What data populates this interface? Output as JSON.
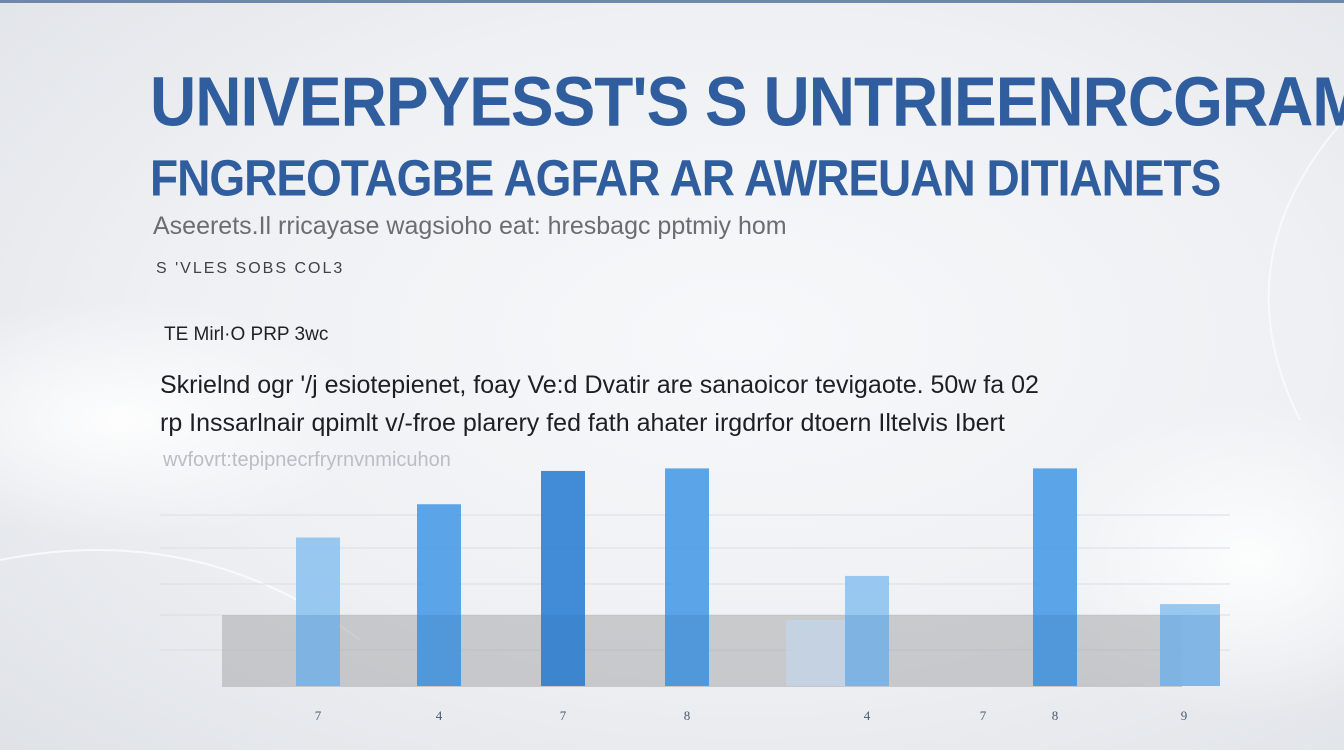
{
  "header": {
    "title": "UNIVERPYESST'S S UNTRIEENRCGRAM",
    "subtitle": "FNGREOTAGBE AGFAR AR AWREUAN DITIANETS",
    "caption": "Aseerets.Il rricayase wagsioho eat: hresbagc pptmiy hom",
    "tag": "S 'VLES SOBS COL3"
  },
  "text_block": {
    "label": "TE Mirl·O PRP 3wc",
    "line1": "Skrielnd ogr '/j esiotepienet, foay Ve:d Dvatir are sanaoicor tevigaote. 50w fa 02",
    "line2": "rp Inssarlnair qpimlt v/-froe plarery fed fath ahater irgdrfor dtoern Iltelvis Ibert",
    "faded_note": "wvfovrt:tepipnecrfryrnvnmicuhon"
  },
  "colors": {
    "title": "#2f5d9e",
    "bar_light": "#8ec3f0",
    "bar_mid": "#4a9be6",
    "bar_dark": "#2f7fd4",
    "band": "#a8a9ab"
  },
  "chart_data": {
    "type": "bar",
    "categories": [
      "7",
      "4",
      "7",
      "8",
      "4",
      "7",
      "8",
      "9"
    ],
    "values": [
      58,
      71,
      84,
      85,
      43,
      null,
      85,
      32
    ],
    "ylim": [
      0,
      100
    ],
    "grid": true,
    "legend": "none"
  }
}
